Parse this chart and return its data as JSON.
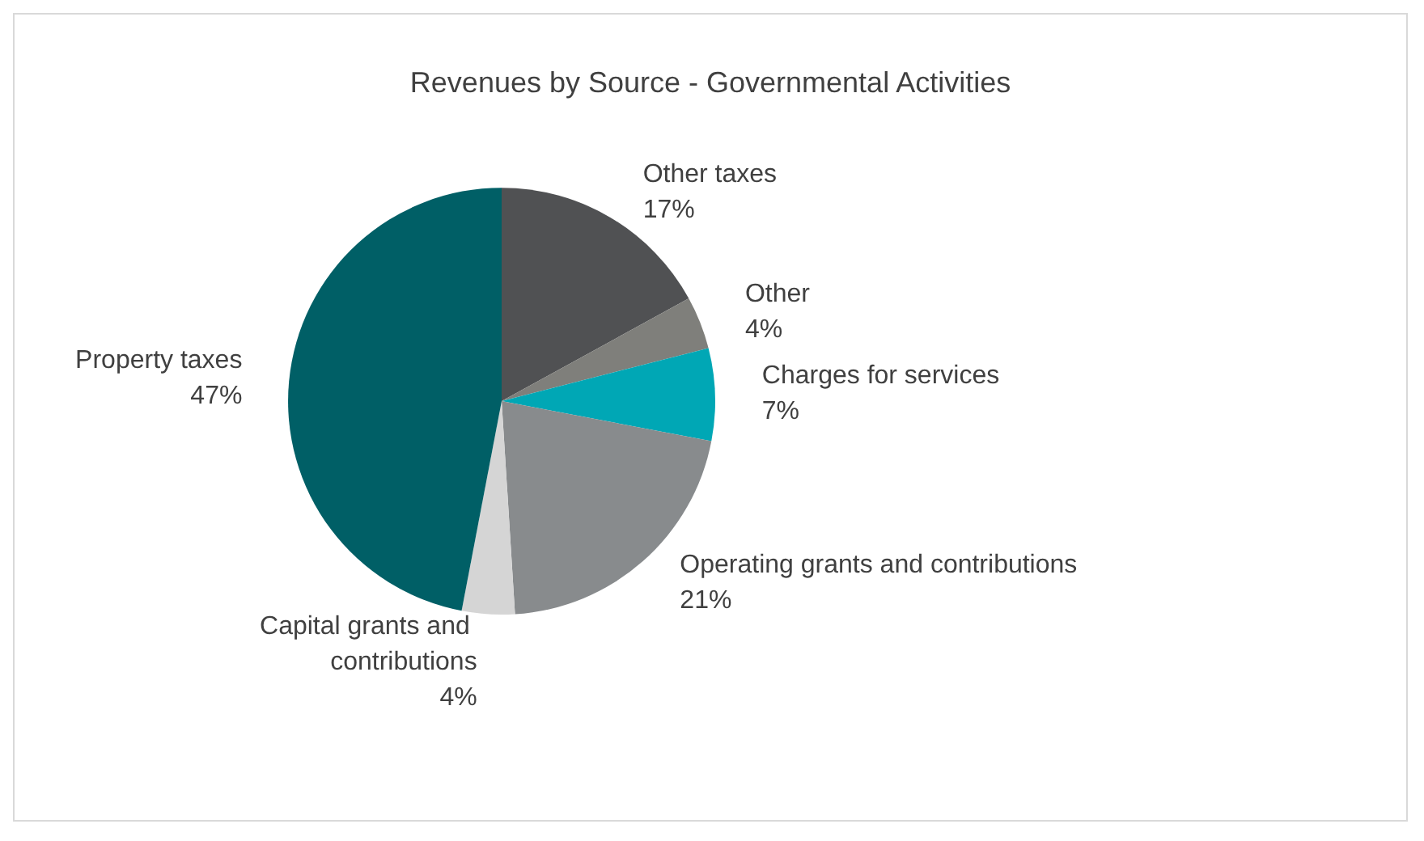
{
  "chart_data": {
    "type": "pie",
    "title": "Revenues by Source - Governmental Activities",
    "categories": [
      "Other taxes",
      "Other",
      "Charges for services",
      "Operating grants and contributions",
      "Capital grants and contributions",
      "Property taxes"
    ],
    "values": [
      17,
      4,
      7,
      21,
      4,
      47
    ],
    "colors": [
      "#505153",
      "#7f7f7b",
      "#00a7b5",
      "#888b8d",
      "#d5d5d5",
      "#005f66"
    ],
    "value_labels": [
      "17%",
      "4%",
      "7%",
      "21%",
      "4%",
      "47%"
    ],
    "legend": false
  }
}
